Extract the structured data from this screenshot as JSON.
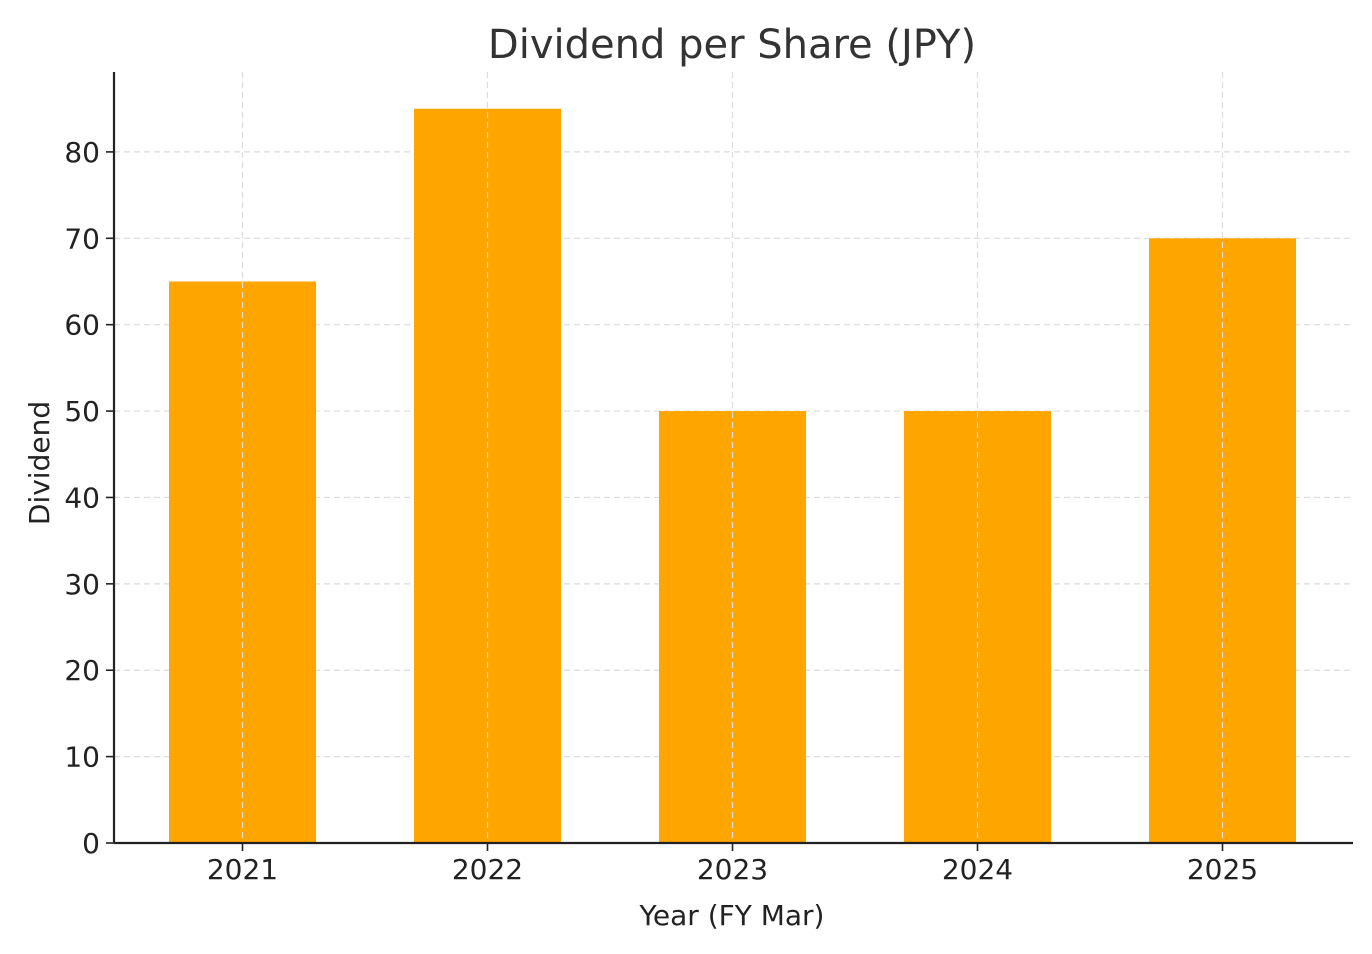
{
  "chart_data": {
    "type": "bar",
    "title": "Dividend per Share (JPY)",
    "xlabel": "Year (FY Mar)",
    "ylabel": "Dividend",
    "categories": [
      "2021",
      "2022",
      "2023",
      "2024",
      "2025"
    ],
    "values": [
      65,
      85,
      50,
      50,
      70
    ],
    "ylim": [
      0,
      89.25
    ],
    "yticks": [
      0,
      10,
      20,
      30,
      40,
      50,
      60,
      70,
      80
    ],
    "grid": true,
    "legend": "none",
    "colors": {
      "bar": "#FFA500",
      "grid": "#dcdcdc",
      "axis": "#222222"
    }
  }
}
